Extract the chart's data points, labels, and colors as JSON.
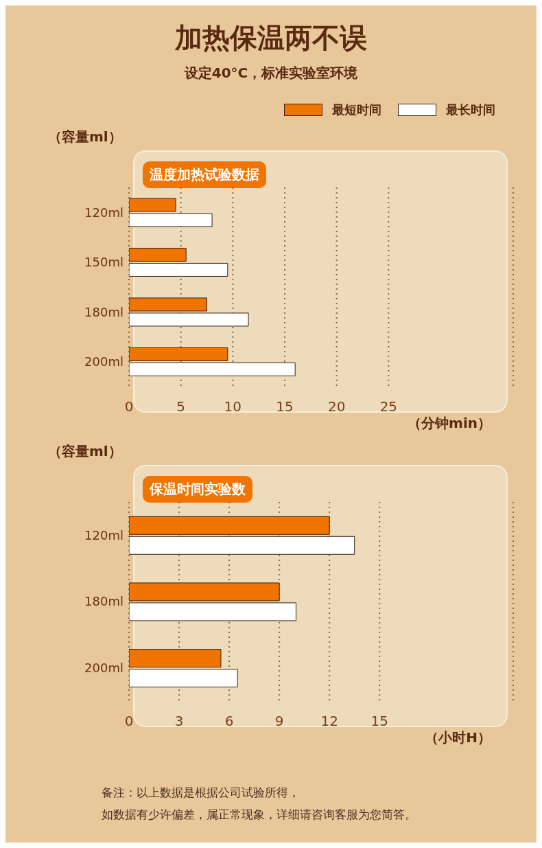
{
  "chart_data": [
    {
      "type": "bar",
      "orientation": "horizontal",
      "title": "加热保温两不误",
      "subtitle": "设定40°C，标准实验室环境",
      "annotations": [
        "温度加热试验数据"
      ],
      "ylabel": "（容量ml）",
      "xlabel": "（分钟min）",
      "categories": [
        "120ml",
        "150ml",
        "180ml",
        "200ml"
      ],
      "series": [
        {
          "name": "最短时间",
          "color": "#f07400",
          "values": [
            4.5,
            5.5,
            7.5,
            9.5
          ]
        },
        {
          "name": "最长时间",
          "color": "#ffffff",
          "values": [
            8,
            9.5,
            11.5,
            16
          ]
        }
      ],
      "xlim": [
        0,
        37
      ],
      "xticks": [
        0,
        5,
        10,
        15,
        20,
        25
      ],
      "grid": "x",
      "legend": "top right"
    },
    {
      "type": "bar",
      "orientation": "horizontal",
      "title": "保温时间实验数",
      "ylabel": "（容量ml）",
      "xlabel": "（小时H）",
      "categories": [
        "120ml",
        "180ml",
        "200ml"
      ],
      "series": [
        {
          "color": "#f07400",
          "values": [
            12,
            9,
            5.5
          ]
        },
        {
          "color": "#ffffff",
          "values": [
            13.5,
            10,
            6.5
          ]
        }
      ],
      "xlim": [
        0,
        23
      ],
      "xticks": [
        0,
        3,
        6,
        9,
        12,
        15
      ],
      "grid": "x",
      "annotations": [
        "备注：以上数据是根据公司试验所得，",
        "如数据有少许偏差，属正常现象，详细请咨询客服为您简答。"
      ]
    }
  ]
}
